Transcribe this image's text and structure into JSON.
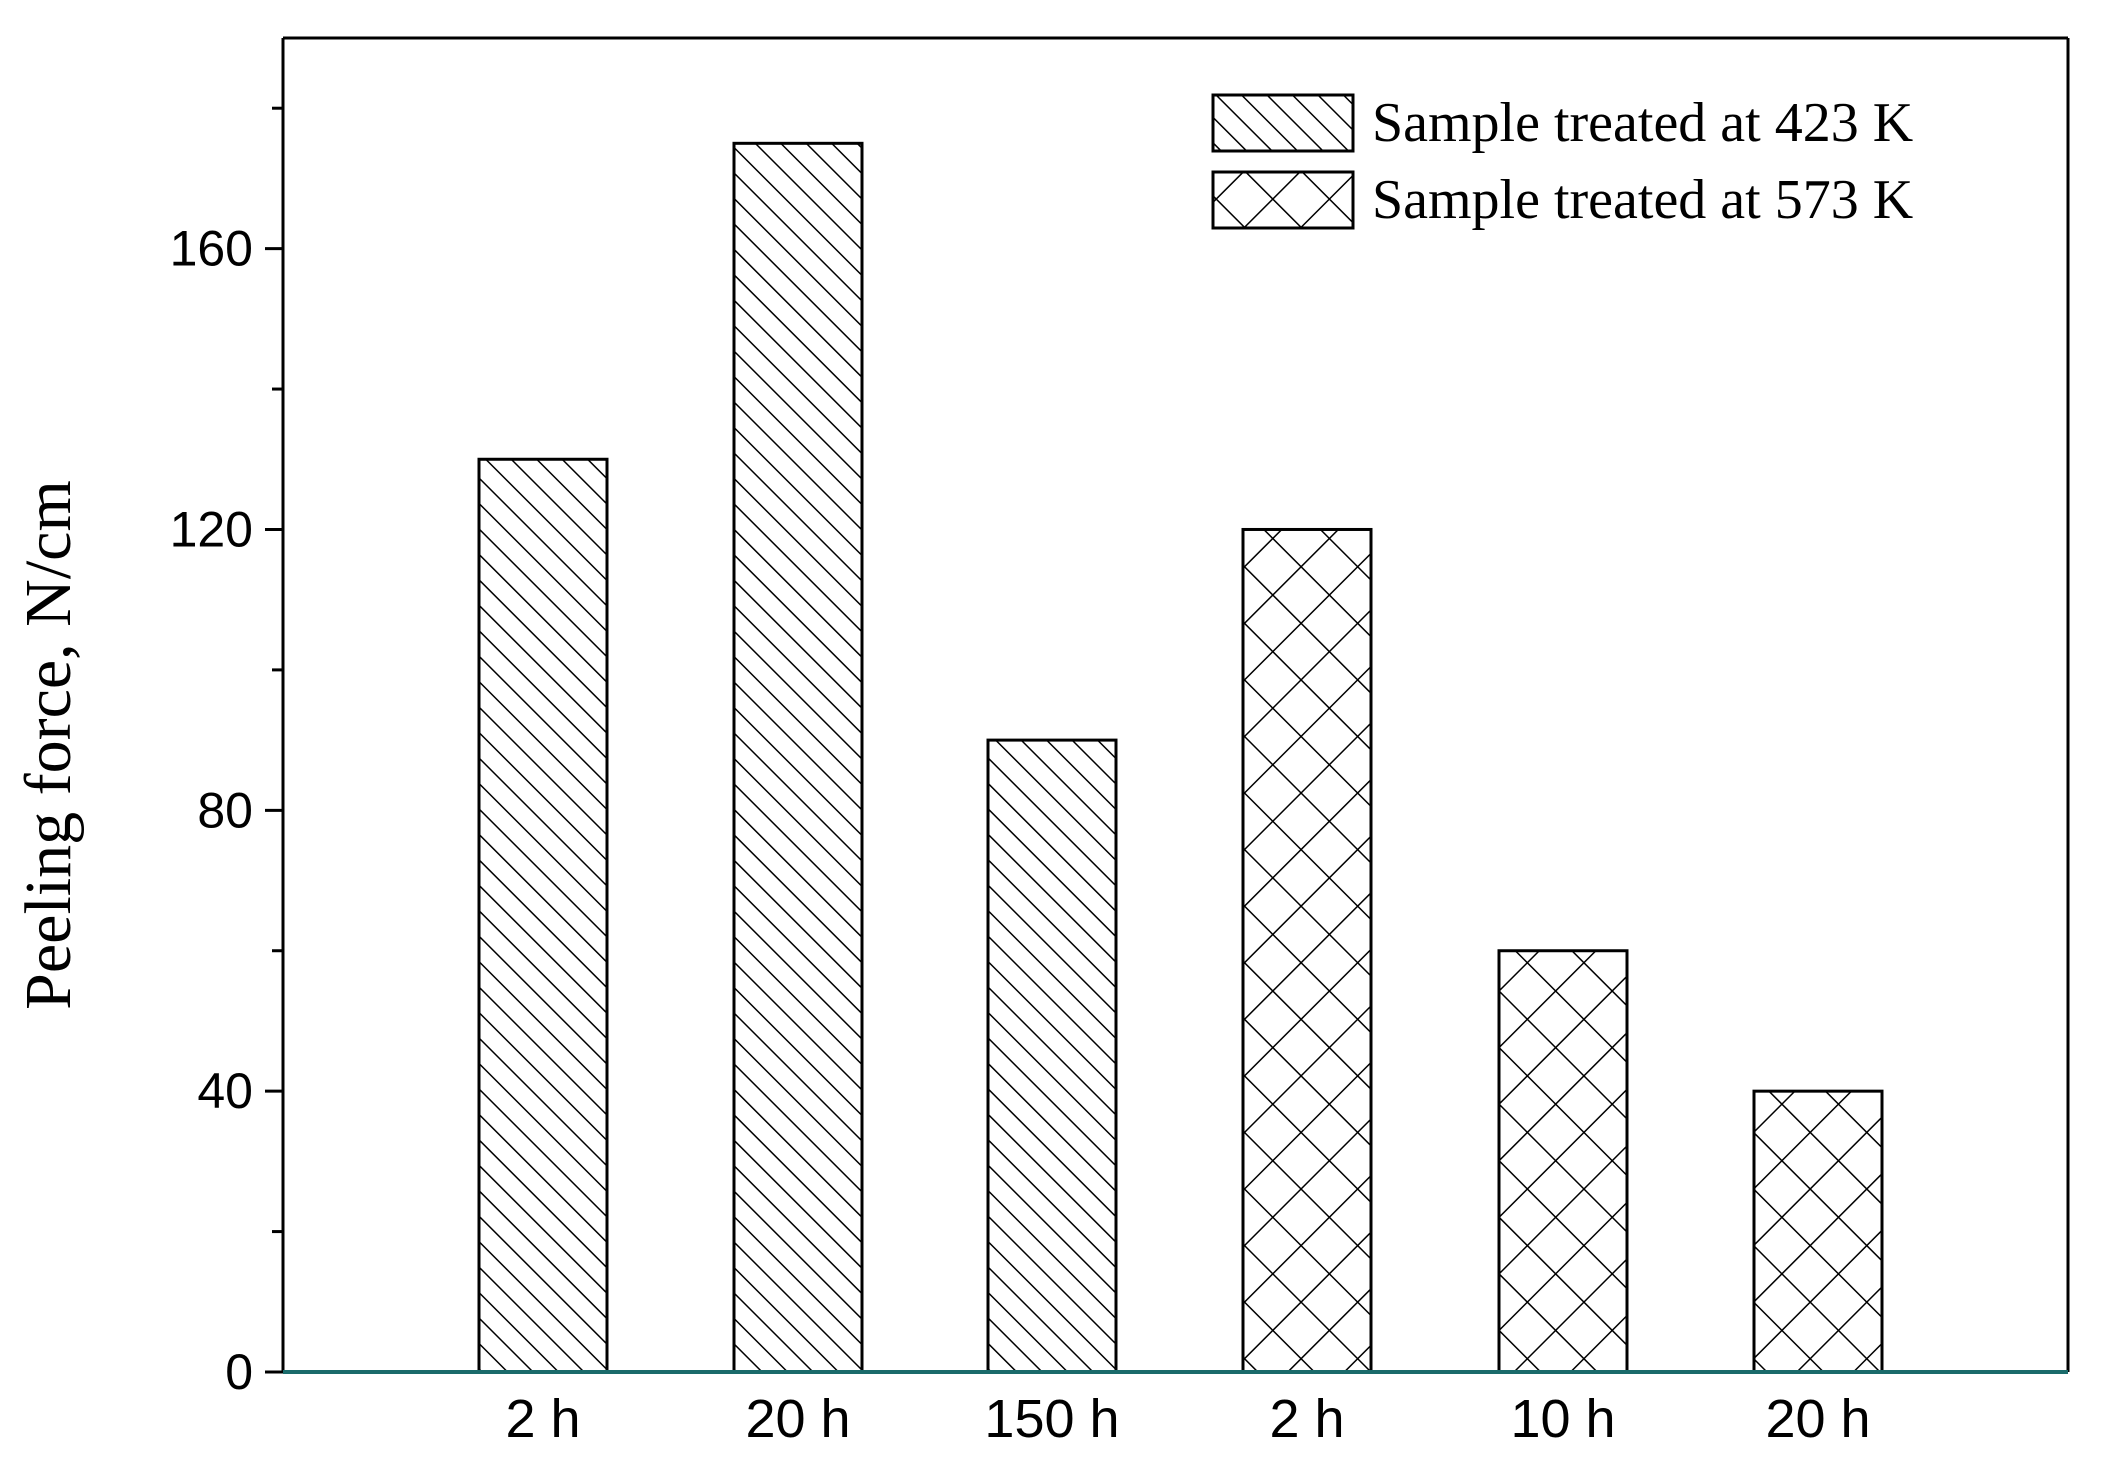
{
  "chart_data": {
    "type": "bar",
    "title": "",
    "xlabel": "",
    "ylabel": "Peeling force, N/cm",
    "ylim": [
      0,
      190
    ],
    "yticks": [
      0,
      40,
      80,
      120,
      160
    ],
    "grid": false,
    "legend_position": "top-right",
    "categories": [
      "2 h",
      "20 h",
      "150 h",
      "2 h",
      "10 h",
      "20 h"
    ],
    "series": [
      {
        "name": "Sample treated at 423 K",
        "pattern": "diagonal-hatch",
        "values": [
          130,
          175,
          90,
          null,
          null,
          null
        ]
      },
      {
        "name": "Sample treated at 573 K",
        "pattern": "cross-hatch",
        "values": [
          null,
          null,
          null,
          120,
          60,
          40
        ]
      }
    ],
    "colors": {
      "axis": "#000000",
      "baseline": "#1a6b6b",
      "fill": "#ffffff"
    }
  }
}
